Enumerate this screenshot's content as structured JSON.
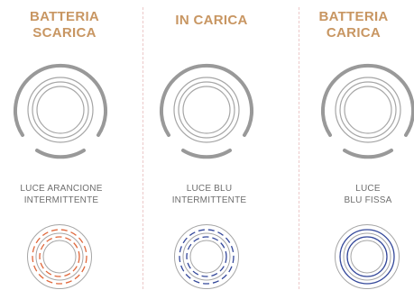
{
  "colors": {
    "title": "#c89662",
    "caption": "#6e6e6e",
    "ring_outer": "#999999",
    "ring_inner": "#a6a6a6",
    "orange_light": "#e0673a",
    "blue_light": "#33479a",
    "divider": "#ecc9c9"
  },
  "states": [
    {
      "title_line1": "BATTERIA",
      "title_line2": "SCARICA",
      "caption_line1": "LUCE ARANCIONE",
      "caption_line2": "INTERMITTENTE",
      "light_color": "orange",
      "light_pattern": "dashed"
    },
    {
      "title_line1": "IN CARICA",
      "title_line2": "",
      "caption_line1": "LUCE BLU",
      "caption_line2": "INTERMITTENTE",
      "light_color": "blue",
      "light_pattern": "dashed"
    },
    {
      "title_line1": "BATTERIA",
      "title_line2": "CARICA",
      "caption_line1": "LUCE",
      "caption_line2": "BLU FISSA",
      "light_color": "blue",
      "light_pattern": "solid"
    }
  ]
}
